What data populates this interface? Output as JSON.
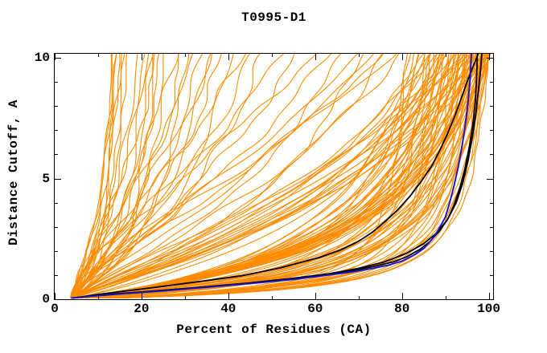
{
  "chart_data": {
    "type": "line",
    "title": "T0995-D1",
    "xlabel": "Percent of Residues (CA)",
    "ylabel": "Distance Cutoff, A",
    "xlim": [
      0,
      101
    ],
    "ylim": [
      0,
      10.17
    ],
    "x_major_ticks": [
      0,
      20,
      40,
      60,
      80,
      100
    ],
    "x_minor_ticks": [
      10,
      30,
      50,
      70,
      90
    ],
    "y_major_ticks": [
      0,
      5,
      10
    ],
    "y_minor_ticks": [
      1,
      2,
      3,
      4,
      6,
      7,
      8,
      9
    ],
    "grid": false,
    "legend": false,
    "colors": {
      "models": "#ff8c00",
      "best_model": "#1414cc",
      "baselines": "#000000",
      "axis": "#000000",
      "background": "#ffffff"
    },
    "noise_seed": 11,
    "best_model_curve": {
      "name": "blue-model",
      "points": [
        [
          3.8,
          0.05
        ],
        [
          8,
          0.12
        ],
        [
          15,
          0.22
        ],
        [
          25,
          0.35
        ],
        [
          35,
          0.5
        ],
        [
          45,
          0.65
        ],
        [
          55,
          0.82
        ],
        [
          62,
          0.98
        ],
        [
          68,
          1.12
        ],
        [
          73,
          1.27
        ],
        [
          77,
          1.42
        ],
        [
          80,
          1.58
        ],
        [
          83,
          1.85
        ],
        [
          85,
          2.1
        ],
        [
          87,
          2.5
        ],
        [
          88.5,
          2.9
        ],
        [
          90,
          3.4
        ],
        [
          91,
          4.0
        ],
        [
          92,
          4.7
        ],
        [
          93,
          5.5
        ],
        [
          93.8,
          6.3
        ],
        [
          94.5,
          7.1
        ],
        [
          95.2,
          8.1
        ],
        [
          95.7,
          9.1
        ],
        [
          96,
          10.17
        ]
      ]
    },
    "baseline_curves": [
      {
        "name": "black-baseline-1",
        "points": [
          [
            4.0,
            0.05
          ],
          [
            9,
            0.14
          ],
          [
            17,
            0.26
          ],
          [
            27,
            0.4
          ],
          [
            37,
            0.55
          ],
          [
            47,
            0.7
          ],
          [
            57,
            0.88
          ],
          [
            64,
            1.05
          ],
          [
            69,
            1.2
          ],
          [
            74,
            1.38
          ],
          [
            78,
            1.55
          ],
          [
            81,
            1.75
          ],
          [
            84,
            2.05
          ],
          [
            86.5,
            2.4
          ],
          [
            88.5,
            2.8
          ],
          [
            90.5,
            3.3
          ],
          [
            92,
            3.9
          ],
          [
            93.3,
            4.6
          ],
          [
            94.5,
            5.4
          ],
          [
            95.5,
            6.3
          ],
          [
            96.3,
            7.2
          ],
          [
            96.9,
            8.2
          ],
          [
            97.2,
            9.2
          ],
          [
            97.4,
            10.17
          ]
        ]
      },
      {
        "name": "black-baseline-2",
        "points": [
          [
            4.2,
            0.05
          ],
          [
            10,
            0.2
          ],
          [
            18,
            0.38
          ],
          [
            26,
            0.56
          ],
          [
            34,
            0.75
          ],
          [
            43,
            0.97
          ],
          [
            52,
            1.3
          ],
          [
            61,
            1.73
          ],
          [
            66,
            2.05
          ],
          [
            70,
            2.4
          ],
          [
            73,
            2.75
          ],
          [
            76,
            3.2
          ],
          [
            79,
            3.7
          ],
          [
            82,
            4.3
          ],
          [
            84.5,
            4.9
          ],
          [
            86.8,
            5.5
          ],
          [
            88.8,
            6.2
          ],
          [
            90.6,
            6.9
          ],
          [
            92.2,
            7.6
          ],
          [
            93.6,
            8.3
          ],
          [
            95,
            9.0
          ],
          [
            96.3,
            9.6
          ],
          [
            97.6,
            10.17
          ]
        ]
      },
      {
        "name": "black-baseline-3",
        "points": [
          [
            4.1,
            0.05
          ],
          [
            10,
            0.17
          ],
          [
            20,
            0.3
          ],
          [
            32,
            0.47
          ],
          [
            44,
            0.66
          ],
          [
            54,
            0.85
          ],
          [
            63,
            1.05
          ],
          [
            70,
            1.28
          ],
          [
            76,
            1.55
          ],
          [
            81,
            1.9
          ],
          [
            85,
            2.3
          ],
          [
            88,
            2.75
          ],
          [
            90.5,
            3.3
          ],
          [
            92.5,
            4.0
          ],
          [
            94,
            4.8
          ],
          [
            95.3,
            5.8
          ],
          [
            96.3,
            6.8
          ],
          [
            97.1,
            7.8
          ],
          [
            97.7,
            8.8
          ],
          [
            98.1,
            9.5
          ],
          [
            98.4,
            10.17
          ]
        ]
      }
    ],
    "model_curves": {
      "count": 124,
      "param_fields": [
        "top_percent",
        "shape_k",
        "shape_a",
        "start_percent",
        "wiggle_amp"
      ],
      "params": [
        [
          13.0,
          3.0,
          1.0,
          3.4,
          0.4
        ],
        [
          13.4,
          4.5,
          1.1,
          3.6,
          0.5
        ],
        [
          13.8,
          2.5,
          0.9,
          3.8,
          0.4
        ],
        [
          14.2,
          6.0,
          1.2,
          4.0,
          0.5
        ],
        [
          14.7,
          3.5,
          1.0,
          4.2,
          0.5
        ],
        [
          15.2,
          5.0,
          1.2,
          3.5,
          0.6
        ],
        [
          15.8,
          2.8,
          0.9,
          3.9,
          0.5
        ],
        [
          16.4,
          4.0,
          1.1,
          4.1,
          0.6
        ],
        [
          19.2,
          5.5,
          1.2,
          3.6,
          0.8
        ],
        [
          20.4,
          3.2,
          1.0,
          4.0,
          0.8
        ],
        [
          21.3,
          7.0,
          1.3,
          3.7,
          0.9
        ],
        [
          22.2,
          4.0,
          1.1,
          4.2,
          0.8
        ],
        [
          22.9,
          2.6,
          0.9,
          3.5,
          0.7
        ],
        [
          23.6,
          8.0,
          1.4,
          3.8,
          0.9
        ],
        [
          24.4,
          5.0,
          1.1,
          4.1,
          0.8
        ],
        [
          25.6,
          3.4,
          1.0,
          3.6,
          0.8
        ],
        [
          27.6,
          8.5,
          1.4,
          4.0,
          1.0
        ],
        [
          29.1,
          5.5,
          1.2,
          3.7,
          0.9
        ],
        [
          30.6,
          4.0,
          1.0,
          4.3,
          0.9
        ],
        [
          32.2,
          9.0,
          1.5,
          3.8,
          1.1
        ],
        [
          33.6,
          6.0,
          1.2,
          3.5,
          1.0
        ],
        [
          35.1,
          4.6,
          1.1,
          4.1,
          1.0
        ],
        [
          36.7,
          10.0,
          1.5,
          3.9,
          1.2
        ],
        [
          38.2,
          7.0,
          1.3,
          4.0,
          1.0
        ],
        [
          41.0,
          5.5,
          1.1,
          3.7,
          1.1
        ],
        [
          43.2,
          11.0,
          1.6,
          4.2,
          1.2
        ],
        [
          45.1,
          8.0,
          1.3,
          3.6,
          1.1
        ],
        [
          47.6,
          6.5,
          1.2,
          4.0,
          1.2
        ],
        [
          52.2,
          12.0,
          1.6,
          3.8,
          1.3
        ],
        [
          55.4,
          9.0,
          1.4,
          4.1,
          1.2
        ],
        [
          58.7,
          13.0,
          1.7,
          3.6,
          1.3
        ],
        [
          62.4,
          10.0,
          1.4,
          4.0,
          1.2
        ],
        [
          66.0,
          7.5,
          1.2,
          3.8,
          1.2
        ],
        [
          70.0,
          12.0,
          1.6,
          4.2,
          1.3
        ],
        [
          70.8,
          6.0,
          1.1,
          3.5,
          1.1
        ],
        [
          71.5,
          9.5,
          1.4,
          4.0,
          1.2
        ],
        [
          74.2,
          11.0,
          1.5,
          3.9,
          1.2
        ],
        [
          75.6,
          7.0,
          1.2,
          4.1,
          1.1
        ],
        [
          77.2,
          13.0,
          1.6,
          3.7,
          1.3
        ],
        [
          79.0,
          9.0,
          1.3,
          4.0,
          1.2
        ],
        [
          81.0,
          0.5,
          0.9,
          3.4,
          0.5
        ],
        [
          81.8,
          1.4,
          1.1,
          4.0,
          0.6
        ],
        [
          82.5,
          2.6,
          1.0,
          4.4,
          0.6
        ],
        [
          83.2,
          0.8,
          1.3,
          3.6,
          0.5
        ],
        [
          83.9,
          3.8,
          0.85,
          4.1,
          0.7
        ],
        [
          84.5,
          1.8,
          1.2,
          3.8,
          0.6
        ],
        [
          85.1,
          0.6,
          1.0,
          4.3,
          0.5
        ],
        [
          85.7,
          4.8,
          1.35,
          3.5,
          0.7
        ],
        [
          86.2,
          1.1,
          0.95,
          4.0,
          0.5
        ],
        [
          86.7,
          2.2,
          1.15,
          4.5,
          0.6
        ],
        [
          87.2,
          0.5,
          0.9,
          3.7,
          0.5
        ],
        [
          87.7,
          1.4,
          1.1,
          4.2,
          0.6
        ],
        [
          88.1,
          2.6,
          1.0,
          3.9,
          0.6
        ],
        [
          88.5,
          0.8,
          1.3,
          4.4,
          0.5
        ],
        [
          88.9,
          3.8,
          0.85,
          3.6,
          0.7
        ],
        [
          89.3,
          1.8,
          1.2,
          4.1,
          0.6
        ],
        [
          89.7,
          0.6,
          1.0,
          3.8,
          0.5
        ],
        [
          90.1,
          4.8,
          1.35,
          4.3,
          0.7
        ],
        [
          90.4,
          1.1,
          0.95,
          3.5,
          0.5
        ],
        [
          90.7,
          2.2,
          1.15,
          4.0,
          0.6
        ],
        [
          91.0,
          0.5,
          0.9,
          4.5,
          0.5
        ],
        [
          91.3,
          1.4,
          1.1,
          3.7,
          0.6
        ],
        [
          91.6,
          2.6,
          1.0,
          4.2,
          0.6
        ],
        [
          91.9,
          0.8,
          1.3,
          3.9,
          0.5
        ],
        [
          92.2,
          3.8,
          0.85,
          4.4,
          0.7
        ],
        [
          92.5,
          1.8,
          1.2,
          3.6,
          0.6
        ],
        [
          92.8,
          0.6,
          1.0,
          4.1,
          0.5
        ],
        [
          93.0,
          4.8,
          1.35,
          3.8,
          0.7
        ],
        [
          93.3,
          1.1,
          0.95,
          4.3,
          0.5
        ],
        [
          93.5,
          2.2,
          1.15,
          3.5,
          0.6
        ],
        [
          93.8,
          0.5,
          0.9,
          4.0,
          0.5
        ],
        [
          94.0,
          1.4,
          1.1,
          4.5,
          0.6
        ],
        [
          94.2,
          2.6,
          1.0,
          3.7,
          0.6
        ],
        [
          94.5,
          0.8,
          1.3,
          4.2,
          0.5
        ],
        [
          94.7,
          3.8,
          0.85,
          3.9,
          0.7
        ],
        [
          94.9,
          1.8,
          1.2,
          4.4,
          0.6
        ],
        [
          95.1,
          0.6,
          1.0,
          3.6,
          0.5
        ],
        [
          95.3,
          4.8,
          1.35,
          4.1,
          0.7
        ],
        [
          95.5,
          1.1,
          0.95,
          3.8,
          0.5
        ],
        [
          95.7,
          2.2,
          1.15,
          4.3,
          0.6
        ],
        [
          95.9,
          0.5,
          0.9,
          3.5,
          0.5
        ],
        [
          96.1,
          1.4,
          1.1,
          4.0,
          0.6
        ],
        [
          96.3,
          2.6,
          1.0,
          4.5,
          0.6
        ],
        [
          96.5,
          0.8,
          1.3,
          3.7,
          0.5
        ],
        [
          96.7,
          3.8,
          0.85,
          4.2,
          0.7
        ],
        [
          96.9,
          1.8,
          1.2,
          3.9,
          0.6
        ],
        [
          97.0,
          0.6,
          1.0,
          4.4,
          0.5
        ],
        [
          97.2,
          4.8,
          1.35,
          3.6,
          0.7
        ],
        [
          97.4,
          1.1,
          0.95,
          4.1,
          0.5
        ],
        [
          97.5,
          2.2,
          1.15,
          3.8,
          0.6
        ],
        [
          97.7,
          0.5,
          0.9,
          4.3,
          0.5
        ],
        [
          97.8,
          1.4,
          1.1,
          3.5,
          0.6
        ],
        [
          98.0,
          2.6,
          1.0,
          4.0,
          0.6
        ],
        [
          98.1,
          0.8,
          1.3,
          4.5,
          0.5
        ],
        [
          98.3,
          3.8,
          0.85,
          3.7,
          0.7
        ],
        [
          98.4,
          1.8,
          1.2,
          4.2,
          0.6
        ],
        [
          98.5,
          0.6,
          1.0,
          3.9,
          0.5
        ],
        [
          98.7,
          4.8,
          1.35,
          4.4,
          0.7
        ],
        [
          98.8,
          1.1,
          0.95,
          3.6,
          0.5
        ],
        [
          98.9,
          2.2,
          1.15,
          4.1,
          0.6
        ],
        [
          99.0,
          0.5,
          0.9,
          3.8,
          0.5
        ],
        [
          99.1,
          1.4,
          1.1,
          4.3,
          0.6
        ],
        [
          99.2,
          2.6,
          1.0,
          3.5,
          0.6
        ],
        [
          99.3,
          0.8,
          1.3,
          4.0,
          0.5
        ],
        [
          99.4,
          3.8,
          0.85,
          4.5,
          0.6
        ],
        [
          99.5,
          1.8,
          1.2,
          3.7,
          0.5
        ],
        [
          99.55,
          0.6,
          1.0,
          4.2,
          0.4
        ],
        [
          99.6,
          4.8,
          1.35,
          3.9,
          0.5
        ],
        [
          99.65,
          1.1,
          0.95,
          4.4,
          0.4
        ],
        [
          99.7,
          2.2,
          1.15,
          3.6,
          0.4
        ],
        [
          99.75,
          0.5,
          0.9,
          4.1,
          0.4
        ],
        [
          99.8,
          1.4,
          1.1,
          3.8,
          0.4
        ],
        [
          99.85,
          2.6,
          1.0,
          4.3,
          0.4
        ],
        [
          99.9,
          0.8,
          1.3,
          3.5,
          0.4
        ],
        [
          84.8,
          6.5,
          1.2,
          4.0,
          0.8
        ],
        [
          87.0,
          7.5,
          1.3,
          4.5,
          0.8
        ],
        [
          89.0,
          6.0,
          1.1,
          3.7,
          0.8
        ],
        [
          91.5,
          8.0,
          1.3,
          4.2,
          0.8
        ],
        [
          93.0,
          7.0,
          1.2,
          3.9,
          0.8
        ],
        [
          95.0,
          9.0,
          1.4,
          4.4,
          0.8
        ],
        [
          96.5,
          6.5,
          1.1,
          3.6,
          0.7
        ],
        [
          98.0,
          8.5,
          1.3,
          4.1,
          0.7
        ],
        [
          86.0,
          5.5,
          1.0,
          3.8,
          0.8
        ],
        [
          90.0,
          5.0,
          1.0,
          4.0,
          0.7
        ]
      ]
    }
  }
}
